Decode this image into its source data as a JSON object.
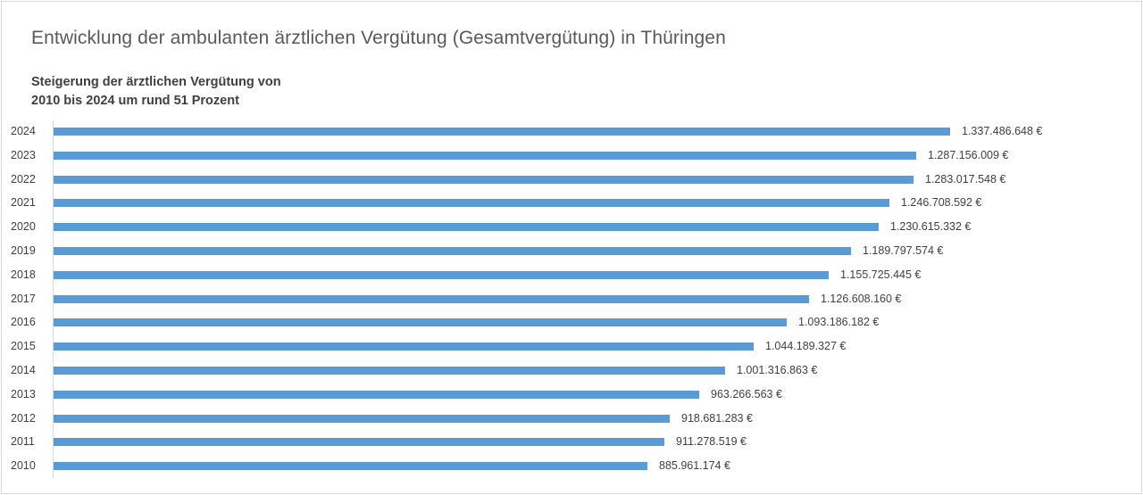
{
  "chart_data": {
    "type": "bar",
    "orientation": "horizontal",
    "title": "Entwicklung der ambulanten ärztlichen Vergütung (Gesamtvergütung) in Thüringen",
    "subtitle_lines": [
      "Steigerung der ärztlichen Vergütung von",
      "2010 bis 2024 um rund 51 Prozent"
    ],
    "xlabel": "",
    "ylabel": "",
    "grid": false,
    "legend": null,
    "xlim": [
      0,
      1337486648
    ],
    "bar_color": "#5b9bd5",
    "categories": [
      "2024",
      "2023",
      "2022",
      "2021",
      "2020",
      "2019",
      "2018",
      "2017",
      "2016",
      "2015",
      "2014",
      "2013",
      "2012",
      "2011",
      "2010"
    ],
    "values": [
      1337486648,
      1287156009,
      1283017548,
      1246708592,
      1230615332,
      1189797574,
      1155725445,
      1126608160,
      1093186182,
      1044189327,
      1001316863,
      963266563,
      918681283,
      911278519,
      885961174
    ],
    "data_labels": [
      "1.337.486.648 €",
      "1.287.156.009 €",
      "1.283.017.548 €",
      "1.246.708.592 €",
      "1.230.615.332 €",
      "1.189.797.574 €",
      "1.155.725.445 €",
      "1.126.608.160 €",
      "1.093.186.182 €",
      "1.044.189.327 €",
      "1.001.316.863 €",
      "963.266.563 €",
      "918.681.283 €",
      "911.278.519 €",
      "885.961.174 €"
    ]
  }
}
